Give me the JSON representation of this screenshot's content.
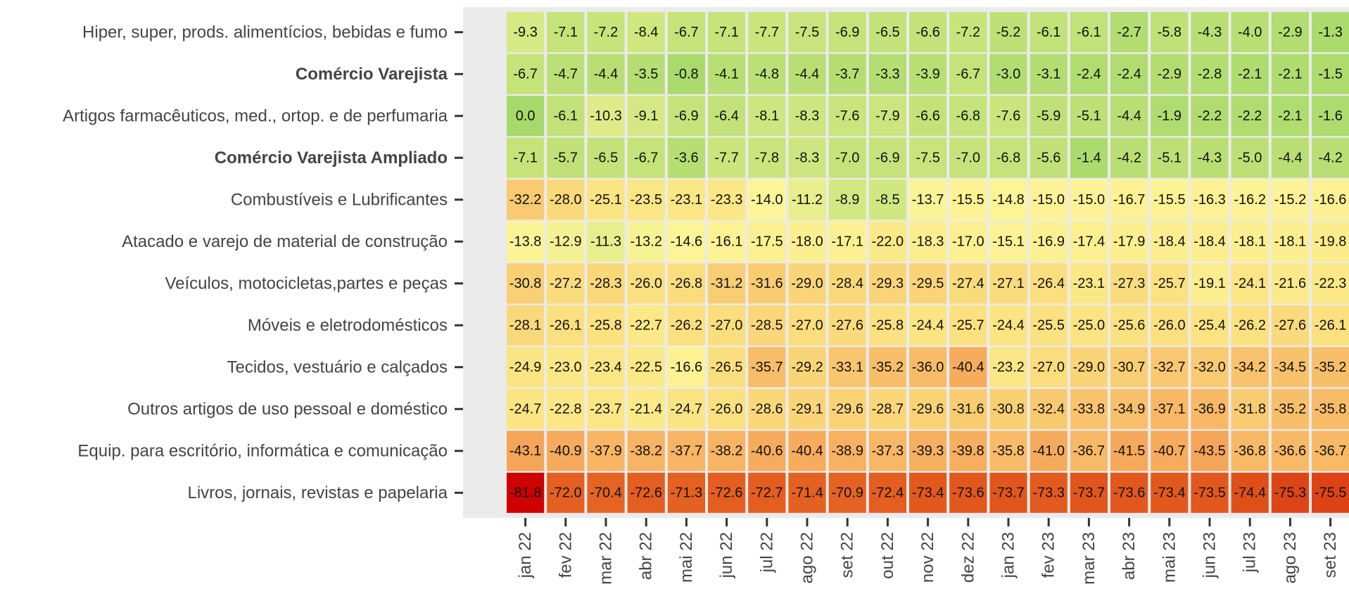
{
  "chart_data": {
    "type": "heatmap",
    "title": "",
    "xlabel": "",
    "ylabel": "",
    "colorscale": [
      "#cc0000",
      "#e35d1e",
      "#f7ad5e",
      "#fbe482",
      "#fdf598",
      "#c5e37a",
      "#a6d96a"
    ],
    "x": [
      "jan 22",
      "fev 22",
      "mar 22",
      "abr 22",
      "mai 22",
      "jun 22",
      "jul 22",
      "ago 22",
      "set 22",
      "out 22",
      "nov 22",
      "dez 22",
      "jan 23",
      "fev 23",
      "mar 23",
      "abr 23",
      "mai 23",
      "jun 23",
      "jul 23",
      "ago 23",
      "set 23"
    ],
    "rows": [
      {
        "label": "Hiper, super, prods.  alimentícios, bebidas e fumo",
        "bold": false,
        "values": [
          -9.3,
          -7.1,
          -7.2,
          -8.4,
          -6.7,
          -7.1,
          -7.7,
          -7.5,
          -6.9,
          -6.5,
          -6.6,
          -7.2,
          -5.2,
          -6.1,
          -6.1,
          -2.7,
          -5.8,
          -4.3,
          -4.0,
          -2.9,
          -1.3
        ]
      },
      {
        "label": "Comércio Varejista",
        "bold": true,
        "values": [
          -6.7,
          -4.7,
          -4.4,
          -3.5,
          -0.8,
          -4.1,
          -4.8,
          -4.4,
          -3.7,
          -3.3,
          -3.9,
          -6.7,
          -3.0,
          -3.1,
          -2.4,
          -2.4,
          -2.9,
          -2.8,
          -2.1,
          -2.1,
          -1.5
        ]
      },
      {
        "label": "Artigos farmacêuticos, med., ortop. e de perfumaria",
        "bold": false,
        "values": [
          0.0,
          -6.1,
          -10.3,
          -9.1,
          -6.9,
          -6.4,
          -8.1,
          -8.3,
          -7.6,
          -7.9,
          -6.6,
          -6.8,
          -7.6,
          -5.9,
          -5.1,
          -4.4,
          -1.9,
          -2.2,
          -2.2,
          -2.1,
          -1.6
        ]
      },
      {
        "label": "Comércio Varejista Ampliado",
        "bold": true,
        "values": [
          -7.1,
          -5.7,
          -6.5,
          -6.7,
          -3.6,
          -7.7,
          -7.8,
          -8.3,
          -7.0,
          -6.9,
          -7.5,
          -7.0,
          -6.8,
          -5.6,
          -1.4,
          -4.2,
          -5.1,
          -4.3,
          -5.0,
          -4.4,
          -4.2
        ]
      },
      {
        "label": "Combustíveis e Lubrificantes",
        "bold": false,
        "values": [
          -32.2,
          -28.0,
          -25.1,
          -23.5,
          -23.1,
          -23.3,
          -14.0,
          -11.2,
          -8.9,
          -8.5,
          -13.7,
          -15.5,
          -14.8,
          -15.0,
          -15.0,
          -16.7,
          -15.5,
          -16.3,
          -16.2,
          -15.2,
          -16.6
        ]
      },
      {
        "label": "Atacado e varejo de material de construção",
        "bold": false,
        "values": [
          -13.8,
          -12.9,
          -11.3,
          -13.2,
          -14.6,
          -16.1,
          -17.5,
          -18.0,
          -17.1,
          -22.0,
          -18.3,
          -17.0,
          -15.1,
          -16.9,
          -17.4,
          -17.9,
          -18.4,
          -18.4,
          -18.1,
          -18.1,
          -19.8
        ]
      },
      {
        "label": "Veículos, motocicletas,partes e peças",
        "bold": false,
        "values": [
          -30.8,
          -27.2,
          -28.3,
          -26.0,
          -26.8,
          -31.2,
          -31.6,
          -29.0,
          -28.4,
          -29.3,
          -29.5,
          -27.4,
          -27.1,
          -26.4,
          -23.1,
          -27.3,
          -25.7,
          -19.1,
          -24.1,
          -21.6,
          -22.3
        ]
      },
      {
        "label": "Móveis e eletrodomésticos",
        "bold": false,
        "values": [
          -28.1,
          -26.1,
          -25.8,
          -22.7,
          -26.2,
          -27.0,
          -28.5,
          -27.0,
          -27.6,
          -25.8,
          -24.4,
          -25.7,
          -24.4,
          -25.5,
          -25.0,
          -25.6,
          -26.0,
          -25.4,
          -26.2,
          -27.6,
          -26.1
        ]
      },
      {
        "label": "Tecidos, vestuário e calçados",
        "bold": false,
        "values": [
          -24.9,
          -23.0,
          -23.4,
          -22.5,
          -16.6,
          -26.5,
          -35.7,
          -29.2,
          -33.1,
          -35.2,
          -36.0,
          -40.4,
          -23.2,
          -27.0,
          -29.0,
          -30.7,
          -32.7,
          -32.0,
          -34.2,
          -34.5,
          -35.2
        ]
      },
      {
        "label": "Outros artigos de uso pessoal e doméstico",
        "bold": false,
        "values": [
          -24.7,
          -22.8,
          -23.7,
          -21.4,
          -24.7,
          -26.0,
          -28.6,
          -29.1,
          -29.6,
          -28.7,
          -29.6,
          -31.6,
          -30.8,
          -32.4,
          -33.8,
          -34.9,
          -37.1,
          -36.9,
          -31.8,
          -35.2,
          -35.8
        ]
      },
      {
        "label": "Equip. para escritório, informática e comunicação",
        "bold": false,
        "values": [
          -43.1,
          -40.9,
          -37.9,
          -38.2,
          -37.7,
          -38.2,
          -40.6,
          -40.4,
          -38.9,
          -37.3,
          -39.3,
          -39.8,
          -35.8,
          -41.0,
          -36.7,
          -41.5,
          -40.7,
          -43.5,
          -36.8,
          -36.6,
          -36.7
        ]
      },
      {
        "label": "Livros, jornais, revistas e papelaria",
        "bold": false,
        "values": [
          -81.8,
          -72.0,
          -70.4,
          -72.6,
          -71.3,
          -72.6,
          -72.7,
          -71.4,
          -70.9,
          -72.4,
          -73.4,
          -73.6,
          -73.7,
          -73.3,
          -73.7,
          -73.6,
          -73.4,
          -73.5,
          -74.4,
          -75.3,
          -75.5
        ]
      }
    ]
  }
}
